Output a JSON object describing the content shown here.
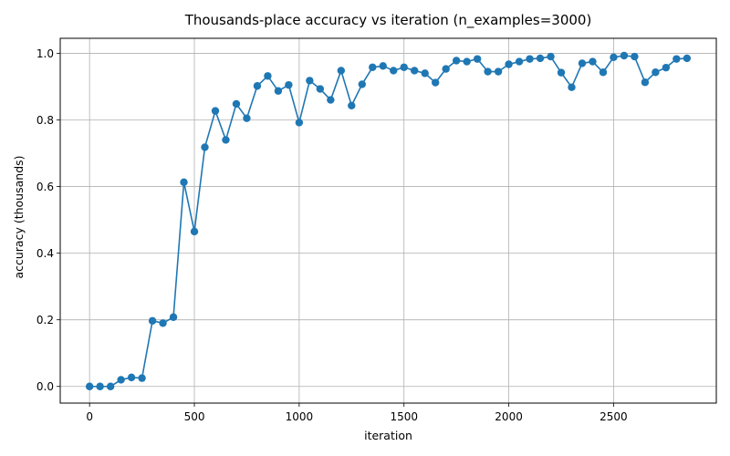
{
  "chart_data": {
    "type": "line",
    "title": "Thousands-place accuracy vs iteration (n_examples=3000)",
    "xlabel": "iteration",
    "ylabel": "accuracy (thousands)",
    "xlim": [
      -140,
      2990
    ],
    "ylim": [
      -0.05,
      1.045
    ],
    "xticks": [
      0,
      500,
      1000,
      1500,
      2000,
      2500
    ],
    "yticks": [
      0.0,
      0.2,
      0.4,
      0.6,
      0.8,
      1.0
    ],
    "grid": true,
    "legend": "none",
    "series": [
      {
        "color": "#1f77b4",
        "marker": "circle",
        "x": [
          0,
          50,
          100,
          150,
          200,
          250,
          300,
          350,
          400,
          450,
          500,
          550,
          600,
          650,
          700,
          750,
          800,
          850,
          900,
          950,
          1000,
          1050,
          1100,
          1150,
          1200,
          1250,
          1300,
          1350,
          1400,
          1450,
          1500,
          1550,
          1600,
          1650,
          1700,
          1750,
          1800,
          1850,
          1900,
          1950,
          2000,
          2050,
          2100,
          2150,
          2200,
          2250,
          2300,
          2350,
          2400,
          2450,
          2500,
          2550,
          2600,
          2650,
          2700,
          2750,
          2800,
          2850
        ],
        "y": [
          0.0,
          0.0,
          0.0,
          0.02,
          0.027,
          0.025,
          0.197,
          0.19,
          0.208,
          0.613,
          0.465,
          0.718,
          0.827,
          0.74,
          0.848,
          0.805,
          0.902,
          0.932,
          0.887,
          0.905,
          0.792,
          0.918,
          0.893,
          0.86,
          0.948,
          0.843,
          0.907,
          0.958,
          0.962,
          0.948,
          0.958,
          0.948,
          0.94,
          0.912,
          0.953,
          0.978,
          0.975,
          0.983,
          0.945,
          0.945,
          0.967,
          0.975,
          0.983,
          0.985,
          0.99,
          0.942,
          0.898,
          0.97,
          0.975,
          0.943,
          0.988,
          0.993,
          0.99,
          0.913,
          0.943,
          0.957,
          0.983,
          0.985
        ]
      }
    ]
  }
}
